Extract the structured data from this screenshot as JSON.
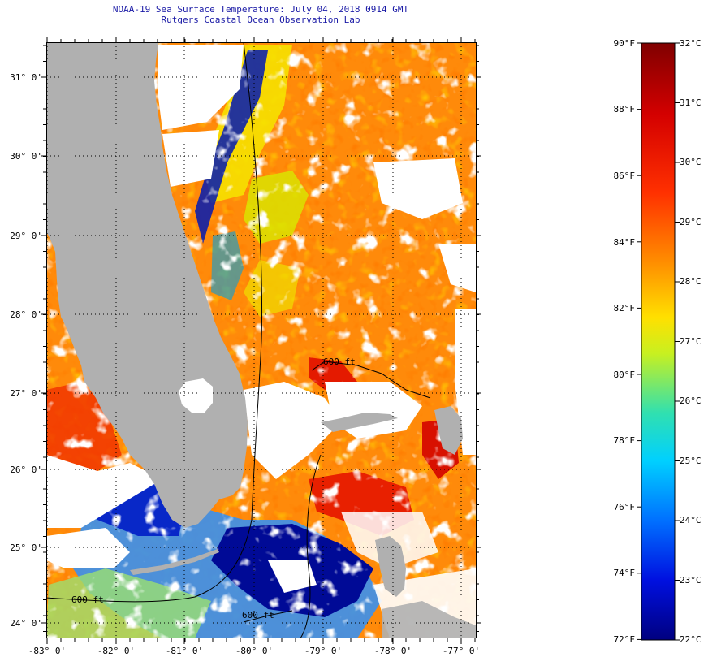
{
  "header": {
    "title": "NOAA-19 Sea Surface Temperature:  July 04, 2018 0914 GMT",
    "subtitle": "Rutgers Coastal Ocean Observation Lab"
  },
  "map": {
    "lat_labels": [
      "31° 0'",
      "30° 0'",
      "29° 0'",
      "28° 0'",
      "27° 0'",
      "26° 0'",
      "25° 0'",
      "24° 0'"
    ],
    "lon_labels": [
      "-83° 0'",
      "-82° 0'",
      "-81° 0'",
      "-80° 0'",
      "-79° 0'",
      "-78° 0'",
      "-77° 0'"
    ],
    "isobath_labels": [
      "600 ft",
      "600 ft",
      "600 ft"
    ]
  },
  "colorbar": {
    "fahrenheit_labels": [
      "90°F",
      "88°F",
      "86°F",
      "84°F",
      "82°F",
      "80°F",
      "78°F",
      "76°F",
      "74°F",
      "72°F"
    ],
    "celsius_labels": [
      "32°C",
      "31°C",
      "30°C",
      "29°C",
      "28°C",
      "27°C",
      "26°C",
      "25°C",
      "24°C",
      "23°C",
      "22°C"
    ]
  },
  "colors": {
    "land": "#b0b0b0",
    "cloud": "#ffffff",
    "warm": "#ff8c00",
    "hot": "#ff2a00",
    "cold": "#000a96"
  }
}
